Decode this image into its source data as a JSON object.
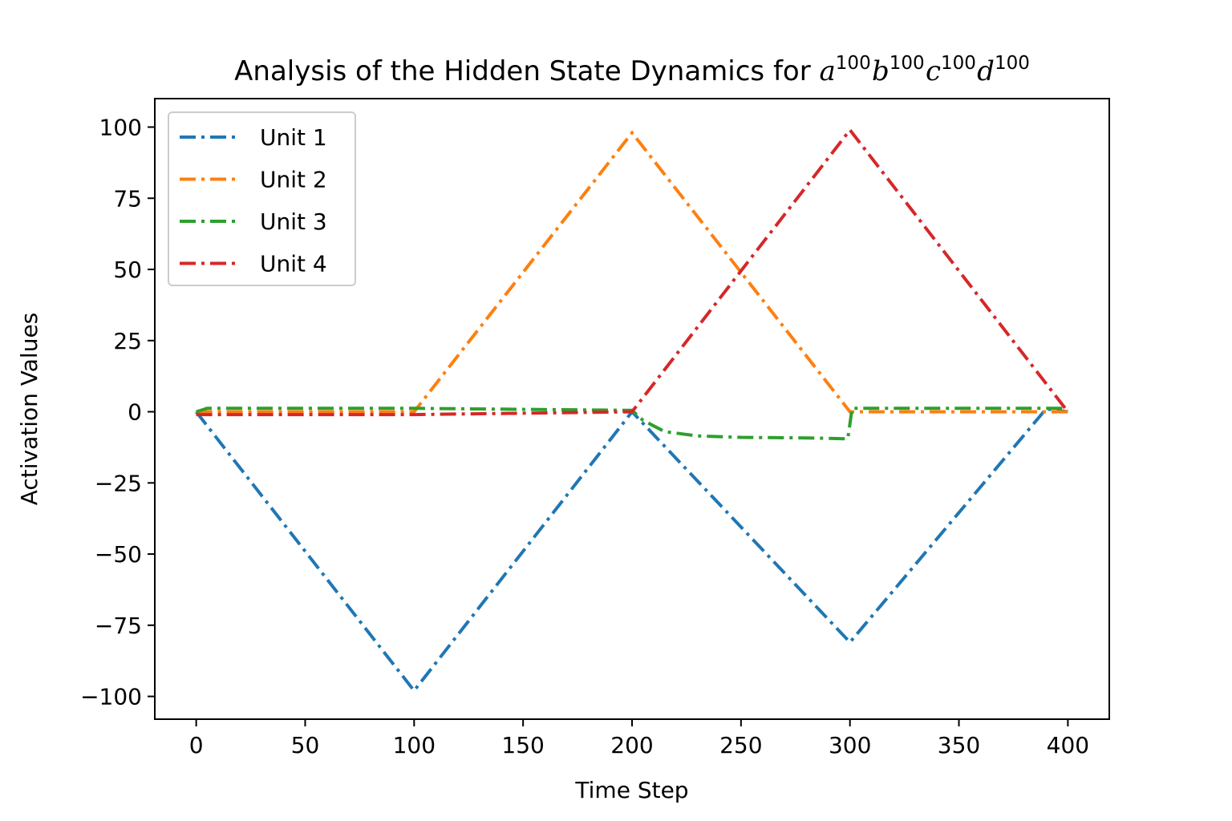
{
  "chart_data": {
    "type": "line",
    "title": "Analysis of the Hidden State Dynamics for ",
    "title_math": [
      {
        "base": "a",
        "sup": "100"
      },
      {
        "base": "b",
        "sup": "100"
      },
      {
        "base": "c",
        "sup": "100"
      },
      {
        "base": "d",
        "sup": "100"
      }
    ],
    "xlabel": "Time Step",
    "ylabel": "Activation Values",
    "xlim": [
      -19,
      419
    ],
    "ylim": [
      -108,
      110
    ],
    "xticks": [
      0,
      50,
      100,
      150,
      200,
      250,
      300,
      350,
      400
    ],
    "xtick_labels": [
      "0",
      "50",
      "100",
      "150",
      "200",
      "250",
      "300",
      "350",
      "400"
    ],
    "yticks": [
      100,
      75,
      50,
      25,
      0,
      -25,
      -50,
      -75,
      -100
    ],
    "ytick_labels": [
      "100",
      "75",
      "50",
      "25",
      "0",
      "−25",
      "−50",
      "−75",
      "−100"
    ],
    "grid": false,
    "legend_position": "upper-left",
    "series": [
      {
        "name": "Unit 1",
        "color": "#1f77b4",
        "points": [
          [
            0,
            0
          ],
          [
            100,
            -98
          ],
          [
            200,
            0
          ],
          [
            300,
            -81
          ],
          [
            390,
            1
          ],
          [
            400,
            0
          ]
        ]
      },
      {
        "name": "Unit 2",
        "color": "#ff7f0e",
        "points": [
          [
            0,
            0
          ],
          [
            100,
            0
          ],
          [
            200,
            98
          ],
          [
            300,
            0
          ],
          [
            400,
            0
          ]
        ]
      },
      {
        "name": "Unit 3",
        "color": "#2ca02c",
        "points": [
          [
            0,
            0
          ],
          [
            5,
            1.2
          ],
          [
            100,
            1.2
          ],
          [
            200,
            0.5
          ],
          [
            205,
            -3
          ],
          [
            215,
            -7
          ],
          [
            230,
            -8.5
          ],
          [
            250,
            -9
          ],
          [
            280,
            -9.2
          ],
          [
            299,
            -9.5
          ],
          [
            301,
            1.2
          ],
          [
            400,
            1.2
          ]
        ]
      },
      {
        "name": "Unit 4",
        "color": "#d62728",
        "points": [
          [
            0,
            -1
          ],
          [
            100,
            -1
          ],
          [
            200,
            0
          ],
          [
            300,
            99
          ],
          [
            400,
            0
          ]
        ]
      }
    ]
  }
}
